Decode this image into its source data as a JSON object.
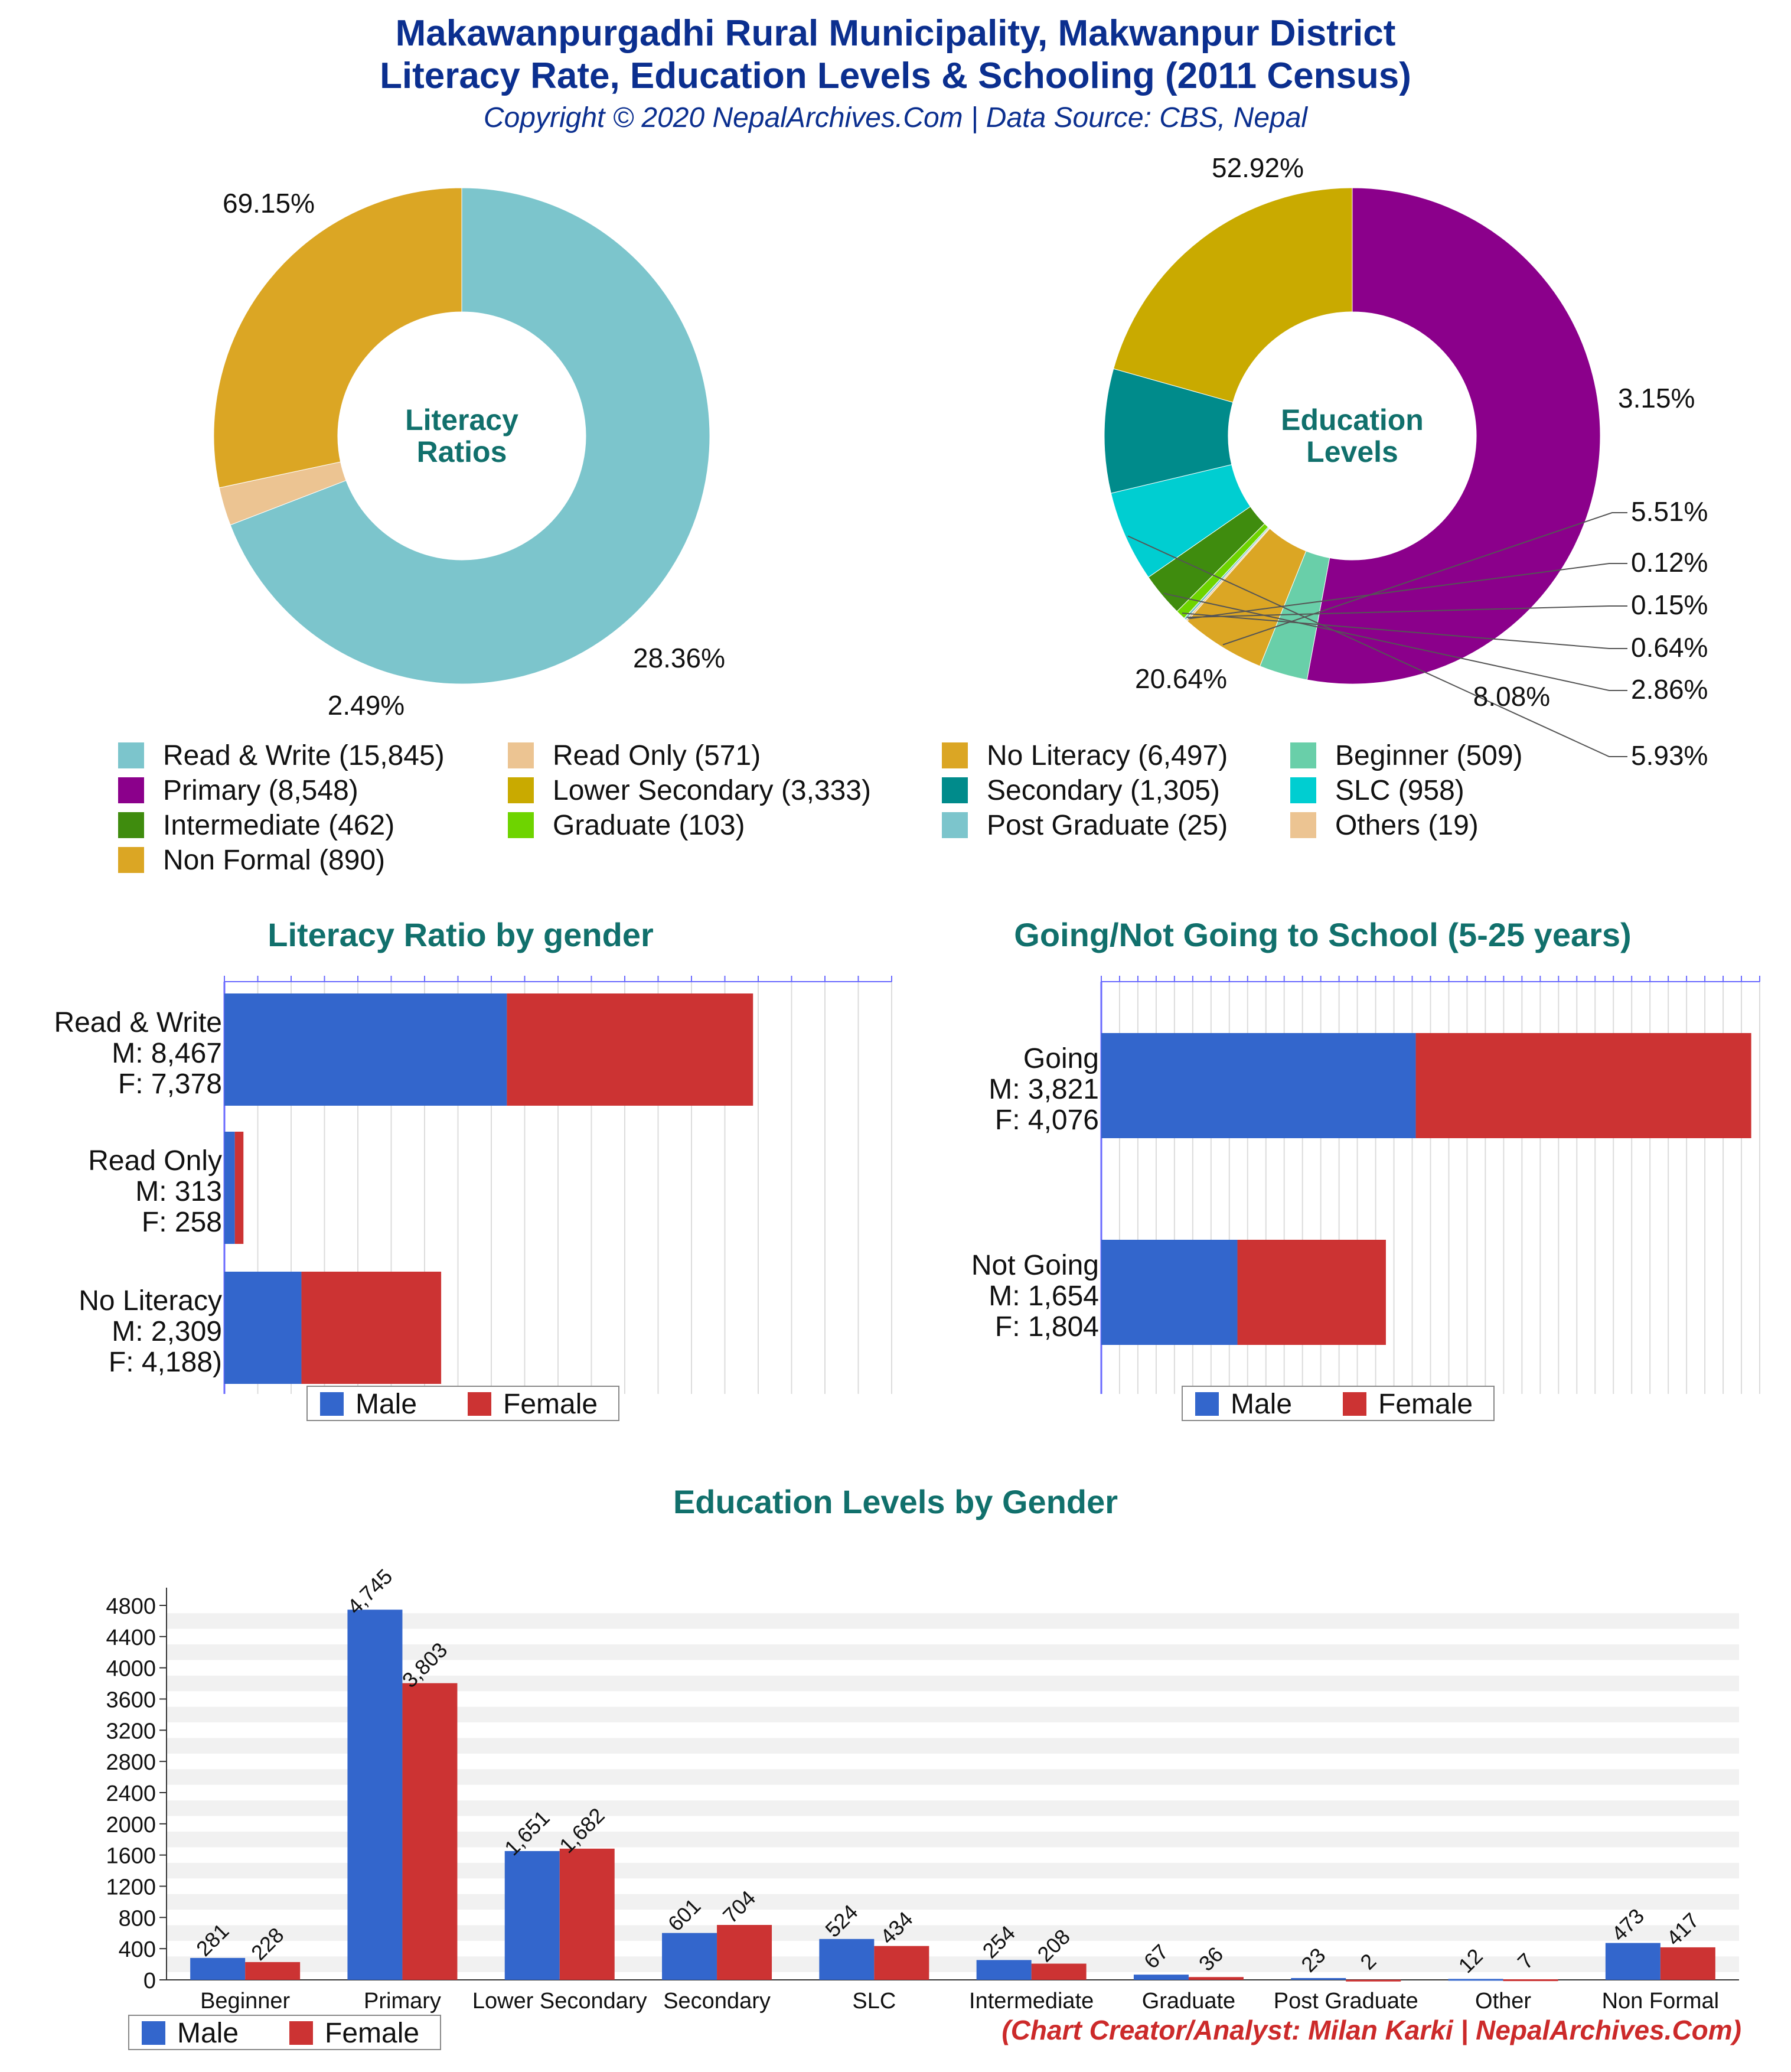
{
  "header": {
    "title_line1": "Makawanpurgadhi Rural Municipality, Makwanpur District",
    "title_line2": "Literacy Rate, Education Levels & Schooling (2011 Census)",
    "copyright": "Copyright © 2020 NepalArchives.Com | Data Source: CBS, Nepal"
  },
  "legend_items": [
    {
      "label": "Read & Write (15,845)",
      "color": "#7cc5cc"
    },
    {
      "label": "Read Only (571)",
      "color": "#ecc492"
    },
    {
      "label": "No Literacy (6,497)",
      "color": "#dba624"
    },
    {
      "label": "Beginner (509)",
      "color": "#69cfa9"
    },
    {
      "label": "Primary (8,548)",
      "color": "#8b008b"
    },
    {
      "label": "Lower Secondary (3,333)",
      "color": "#c9aa00"
    },
    {
      "label": "Secondary (1,305)",
      "color": "#008b8b"
    },
    {
      "label": "SLC (958)",
      "color": "#00ced1"
    },
    {
      "label": "Intermediate (462)",
      "color": "#3f8c0e"
    },
    {
      "label": "Graduate (103)",
      "color": "#6ed400"
    },
    {
      "label": "Post Graduate (25)",
      "color": "#7cc5cc"
    },
    {
      "label": "Others (19)",
      "color": "#ecc492"
    },
    {
      "label": "Non Formal (890)",
      "color": "#dba624"
    }
  ],
  "legend_gender": {
    "male": "Male",
    "female": "Female"
  },
  "credit": "(Chart Creator/Analyst: Milan Karki | NepalArchives.Com)",
  "colors": {
    "male": "#3366cc",
    "female": "#cc3333",
    "grid": "#dcdcdc",
    "axis": "#6a6aff"
  },
  "chart_data": [
    {
      "type": "pie",
      "center_label": [
        "Literacy",
        "Ratios"
      ],
      "slices": [
        {
          "name": "Read & Write",
          "value": 15845,
          "pct_label": "69.15%",
          "color": "#7cc5cc"
        },
        {
          "name": "Read Only",
          "value": 571,
          "pct_label": "2.49%",
          "color": "#ecc492"
        },
        {
          "name": "No Literacy",
          "value": 6497,
          "pct_label": "28.36%",
          "color": "#dba624"
        }
      ]
    },
    {
      "type": "pie",
      "center_label": [
        "Education",
        "Levels"
      ],
      "slices": [
        {
          "name": "Primary",
          "value": 8548,
          "pct_label": "52.92%",
          "color": "#8b008b"
        },
        {
          "name": "Beginner",
          "value": 509,
          "pct_label": "3.15%",
          "color": "#69cfa9"
        },
        {
          "name": "Non Formal",
          "value": 890,
          "pct_label": "5.51%",
          "color": "#dba624"
        },
        {
          "name": "Others",
          "value": 19,
          "pct_label": "0.12%",
          "color": "#ecc492"
        },
        {
          "name": "Post Graduate",
          "value": 25,
          "pct_label": "0.15%",
          "color": "#7cc5cc"
        },
        {
          "name": "Graduate",
          "value": 103,
          "pct_label": "0.64%",
          "color": "#6ed400"
        },
        {
          "name": "Intermediate",
          "value": 462,
          "pct_label": "2.86%",
          "color": "#3f8c0e"
        },
        {
          "name": "SLC",
          "value": 958,
          "pct_label": "5.93%",
          "color": "#00ced1"
        },
        {
          "name": "Secondary",
          "value": 1305,
          "pct_label": "8.08%",
          "color": "#008b8b"
        },
        {
          "name": "Lower Secondary",
          "value": 3333,
          "pct_label": "20.64%",
          "color": "#c9aa00"
        }
      ]
    },
    {
      "type": "bar",
      "orientation": "horizontal",
      "stacked": true,
      "title": "Literacy Ratio by gender",
      "categories": [
        {
          "lines": [
            "Read & Write",
            "M: 8,467",
            "F: 7,378"
          ]
        },
        {
          "lines": [
            "Read Only",
            "M: 313",
            "F: 258"
          ]
        },
        {
          "lines": [
            "No Literacy",
            "M: 2,309",
            "F: 4,188)"
          ]
        }
      ],
      "series": [
        {
          "name": "Male",
          "values": [
            8467,
            313,
            2309
          ]
        },
        {
          "name": "Female",
          "values": [
            7378,
            258,
            4188
          ]
        }
      ],
      "xlim": [
        0,
        20000
      ]
    },
    {
      "type": "bar",
      "orientation": "horizontal",
      "stacked": true,
      "title": "Going/Not Going to School (5-25 years)",
      "categories": [
        {
          "lines": [
            "Going",
            "M: 3,821",
            "F: 4,076"
          ]
        },
        {
          "lines": [
            "Not Going",
            "M: 1,654",
            "F: 1,804"
          ]
        }
      ],
      "series": [
        {
          "name": "Male",
          "values": [
            3821,
            1654
          ]
        },
        {
          "name": "Female",
          "values": [
            4076,
            1804
          ]
        }
      ],
      "xlim": [
        0,
        8000
      ]
    },
    {
      "type": "bar",
      "title": "Education Levels by Gender",
      "categories": [
        "Beginner",
        "Primary",
        "Lower Secondary",
        "Secondary",
        "SLC",
        "Intermediate",
        "Graduate",
        "Post Graduate",
        "Other",
        "Non Formal"
      ],
      "series": [
        {
          "name": "Male",
          "values": [
            281,
            4745,
            1651,
            601,
            524,
            254,
            67,
            23,
            12,
            473
          ],
          "labels": [
            "281",
            "4,745",
            "1,651",
            "601",
            "524",
            "254",
            "67",
            "23",
            "12",
            "473"
          ]
        },
        {
          "name": "Female",
          "values": [
            228,
            3803,
            1682,
            704,
            434,
            208,
            36,
            2,
            7,
            417
          ],
          "labels": [
            "228",
            "3,803",
            "1,682",
            "704",
            "434",
            "208",
            "36",
            "2",
            "7",
            "417"
          ]
        }
      ],
      "ylim": [
        0,
        4800
      ],
      "yticks": [
        0,
        400,
        800,
        1200,
        1600,
        2000,
        2400,
        2800,
        3200,
        3600,
        4000,
        4400,
        4800
      ],
      "grid": true
    }
  ]
}
